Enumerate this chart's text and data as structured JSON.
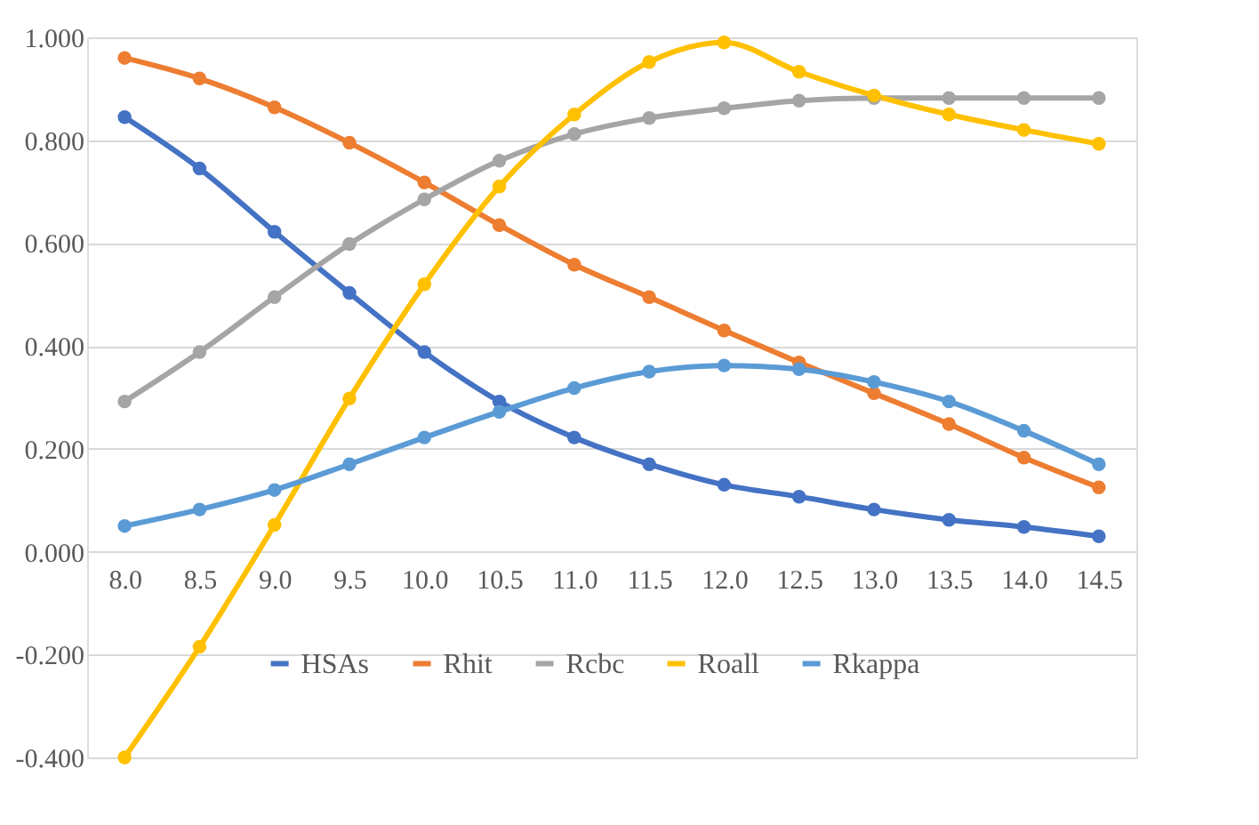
{
  "chart_data": {
    "type": "line",
    "categories": [
      "8.0",
      "8.5",
      "9.0",
      "9.5",
      "10.0",
      "10.5",
      "11.0",
      "11.5",
      "12.0",
      "12.5",
      "13.0",
      "13.5",
      "14.0",
      "14.5"
    ],
    "series": [
      {
        "name": "HSAs",
        "color": "#4472c4",
        "values": [
          0.845,
          0.745,
          0.622,
          0.503,
          0.388,
          0.292,
          0.222,
          0.17,
          0.13,
          0.107,
          0.082,
          0.062,
          0.048,
          0.03
        ]
      },
      {
        "name": "Rhit",
        "color": "#ed7d31",
        "values": [
          0.96,
          0.92,
          0.864,
          0.795,
          0.718,
          0.635,
          0.558,
          0.495,
          0.43,
          0.368,
          0.308,
          0.248,
          0.183,
          0.125
        ]
      },
      {
        "name": "Rcbc",
        "color": "#a5a5a5",
        "values": [
          0.292,
          0.388,
          0.495,
          0.598,
          0.685,
          0.76,
          0.812,
          0.843,
          0.862,
          0.877,
          0.882,
          0.882,
          0.882,
          0.882
        ]
      },
      {
        "name": "Roall",
        "color": "#ffc000",
        "values": [
          -0.4,
          -0.185,
          0.052,
          0.298,
          0.52,
          0.71,
          0.85,
          0.952,
          0.99,
          0.933,
          0.887,
          0.85,
          0.82,
          0.793
        ]
      },
      {
        "name": "Rkappa",
        "color": "#5b9bd5",
        "values": [
          0.05,
          0.082,
          0.12,
          0.17,
          0.222,
          0.272,
          0.318,
          0.35,
          0.362,
          0.355,
          0.33,
          0.292,
          0.235,
          0.17
        ]
      }
    ],
    "ylim": [
      -0.4,
      1.0
    ],
    "yticks": [
      {
        "value": -0.4,
        "label": "-0.400"
      },
      {
        "value": -0.2,
        "label": "-0.200"
      },
      {
        "value": 0,
        "label": "0.000"
      },
      {
        "value": 0.2,
        "label": "0.200"
      },
      {
        "value": 0.4,
        "label": "0.400"
      },
      {
        "value": 0.6,
        "label": "0.600"
      },
      {
        "value": 0.8,
        "label": "0.800"
      },
      {
        "value": 1.0,
        "label": "1.000"
      }
    ],
    "grid": "y",
    "legend": "bottom",
    "marker": "circle",
    "line_style": "solid"
  }
}
